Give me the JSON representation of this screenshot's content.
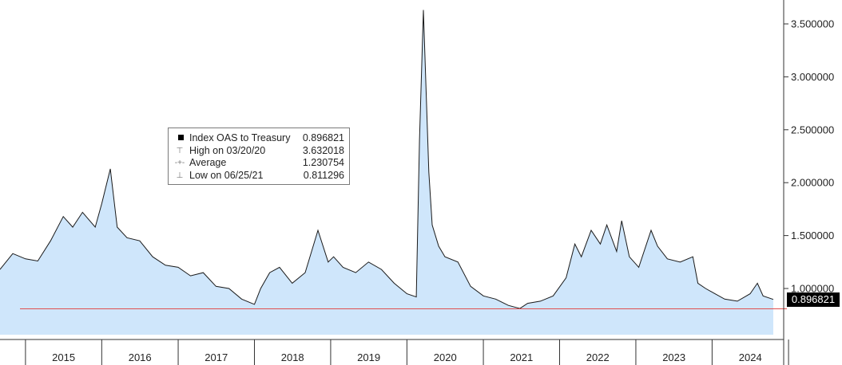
{
  "chart_data": {
    "type": "area",
    "title": "",
    "xlabel": "",
    "ylabel": "",
    "ylim": [
      0.5,
      3.7
    ],
    "xlim": [
      "2014-09-01",
      "2024-10-20"
    ],
    "grid": false,
    "legend_position": "top-left",
    "x_tick_labels": [
      "2015",
      "2016",
      "2017",
      "2018",
      "2019",
      "2020",
      "2021",
      "2022",
      "2023",
      "2024"
    ],
    "y_tick_labels": [
      "1.000000",
      "1.500000",
      "2.000000",
      "2.500000",
      "3.000000",
      "3.500000"
    ],
    "y_tick_values": [
      1.0,
      1.5,
      2.0,
      2.5,
      3.0,
      3.5
    ],
    "colors": {
      "fill": "#cfe6fb",
      "line": "#1a1a1a",
      "reference_line": "#e05050",
      "badge": "#000000"
    },
    "series": [
      {
        "name": "Index OAS to Treasury",
        "x": [
          "2014-09-01",
          "2014-11-01",
          "2015-01-01",
          "2015-03-01",
          "2015-05-01",
          "2015-07-01",
          "2015-08-15",
          "2015-10-01",
          "2015-12-01",
          "2016-01-01",
          "2016-02-11",
          "2016-03-15",
          "2016-05-01",
          "2016-07-01",
          "2016-09-01",
          "2016-11-01",
          "2017-01-01",
          "2017-03-01",
          "2017-05-01",
          "2017-07-01",
          "2017-09-01",
          "2017-11-01",
          "2018-01-01",
          "2018-01-31",
          "2018-03-15",
          "2018-05-01",
          "2018-07-01",
          "2018-09-01",
          "2018-11-01",
          "2018-12-20",
          "2019-01-15",
          "2019-03-01",
          "2019-05-01",
          "2019-07-01",
          "2019-09-01",
          "2019-11-01",
          "2020-01-01",
          "2020-02-15",
          "2020-03-01",
          "2020-03-20",
          "2020-04-15",
          "2020-05-01",
          "2020-06-01",
          "2020-07-01",
          "2020-09-01",
          "2020-11-01",
          "2021-01-01",
          "2021-03-01",
          "2021-05-01",
          "2021-06-25",
          "2021-08-01",
          "2021-10-01",
          "2021-12-01",
          "2022-02-01",
          "2022-03-15",
          "2022-04-15",
          "2022-06-01",
          "2022-07-15",
          "2022-08-15",
          "2022-10-01",
          "2022-10-25",
          "2022-12-01",
          "2023-01-15",
          "2023-03-15",
          "2023-04-15",
          "2023-06-01",
          "2023-08-01",
          "2023-10-01",
          "2023-10-25",
          "2023-12-01",
          "2024-01-15",
          "2024-03-01",
          "2024-05-01",
          "2024-07-01",
          "2024-08-05",
          "2024-09-01",
          "2024-10-20"
        ],
        "y": [
          1.18,
          1.33,
          1.28,
          1.26,
          1.45,
          1.68,
          1.58,
          1.72,
          1.58,
          1.8,
          2.13,
          1.58,
          1.48,
          1.45,
          1.3,
          1.22,
          1.2,
          1.12,
          1.15,
          1.02,
          1.0,
          0.9,
          0.85,
          1.0,
          1.15,
          1.2,
          1.05,
          1.15,
          1.55,
          1.25,
          1.3,
          1.2,
          1.15,
          1.25,
          1.18,
          1.05,
          0.95,
          0.92,
          2.4,
          3.632018,
          2.1,
          1.6,
          1.4,
          1.3,
          1.25,
          1.02,
          0.93,
          0.9,
          0.84,
          0.811296,
          0.86,
          0.88,
          0.93,
          1.1,
          1.42,
          1.3,
          1.55,
          1.42,
          1.6,
          1.35,
          1.64,
          1.3,
          1.2,
          1.55,
          1.4,
          1.28,
          1.25,
          1.3,
          1.05,
          1.0,
          0.95,
          0.9,
          0.88,
          0.95,
          1.05,
          0.93,
          0.896821
        ]
      }
    ],
    "legend": {
      "rows": [
        {
          "label": "Index OAS to Treasury",
          "value": "0.896821"
        },
        {
          "label": "High on 03/20/20",
          "value": "3.632018"
        },
        {
          "label": "Average",
          "value": "1.230754"
        },
        {
          "label": "Low on 06/25/21",
          "value": "0.811296"
        }
      ]
    },
    "stats": {
      "last": 0.896821,
      "high": 3.632018,
      "average": 1.230754,
      "low": 0.811296
    },
    "last_value_label": "0.896821",
    "reference_line_value": 0.811296
  }
}
